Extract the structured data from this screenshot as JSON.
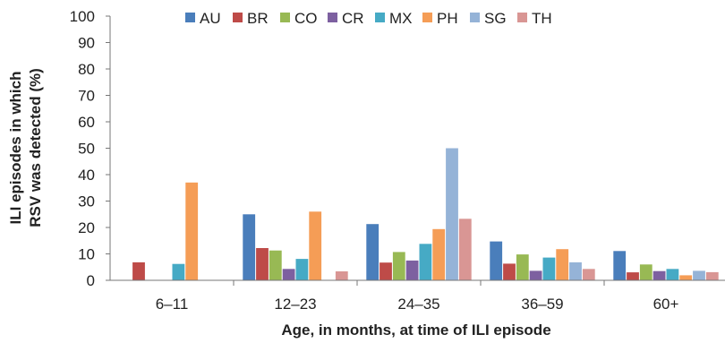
{
  "chart_data": {
    "type": "bar",
    "title": "",
    "xlabel": "Age, in months, at time of ILI episode",
    "ylabel_lines": [
      "ILI episodes in which",
      "RSV was detected (%)"
    ],
    "ylim": [
      0,
      100
    ],
    "yticks": [
      0,
      10,
      20,
      30,
      40,
      50,
      60,
      70,
      80,
      90,
      100
    ],
    "grid": false,
    "legend_position": "top",
    "categories": [
      "6–11",
      "12–23",
      "24–35",
      "36–59",
      "60+"
    ],
    "series": [
      {
        "name": "AU",
        "color": "#4A7EBB",
        "values": [
          null,
          25,
          21.3,
          14.7,
          11.1
        ]
      },
      {
        "name": "BR",
        "color": "#BE4B48",
        "values": [
          6.8,
          12.2,
          6.7,
          6.3,
          3.0
        ]
      },
      {
        "name": "CO",
        "color": "#98B954",
        "values": [
          null,
          11.3,
          10.7,
          9.8,
          6.0
        ]
      },
      {
        "name": "CR",
        "color": "#7D60A0",
        "values": [
          null,
          4.3,
          7.5,
          3.6,
          3.5
        ]
      },
      {
        "name": "MX",
        "color": "#46AAC5",
        "values": [
          6.2,
          8.1,
          13.8,
          8.6,
          4.3
        ]
      },
      {
        "name": "PH",
        "color": "#F59D56",
        "values": [
          37.0,
          26.0,
          19.4,
          11.8,
          1.9
        ]
      },
      {
        "name": "SG",
        "color": "#95B3D7",
        "values": [
          null,
          null,
          50.0,
          6.8,
          3.6
        ]
      },
      {
        "name": "TH",
        "color": "#D99694",
        "values": [
          null,
          3.4,
          23.3,
          4.3,
          3.1
        ]
      }
    ]
  }
}
